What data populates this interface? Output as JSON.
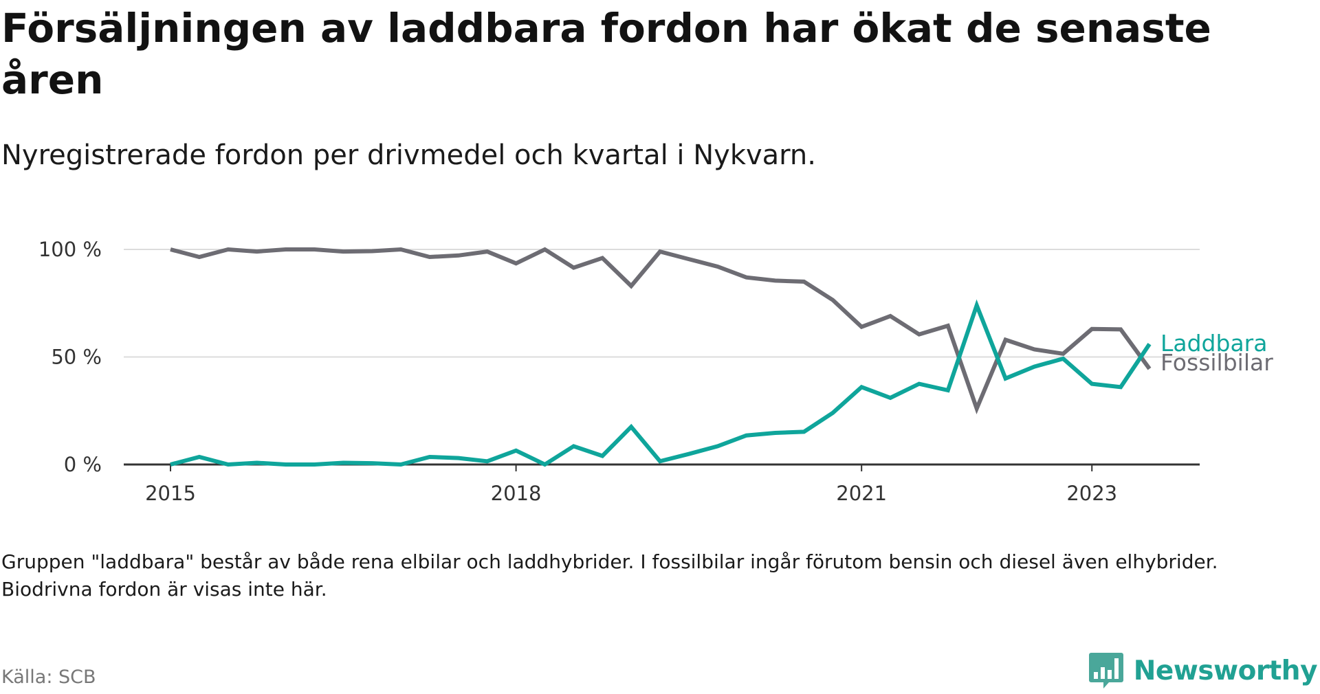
{
  "title": "Försäljningen av laddbara fordon har ökat de senaste åren",
  "subtitle": "Nyregistrerade fordon per drivmedel och kvartal i Nykvarn.",
  "note": "Gruppen \"laddbara\" består av både rena elbilar och laddhybrider. I fossilbilar ingår förutom bensin och diesel även elhybrider. Biodrivna fordon är visas inte här.",
  "source": "Källa: SCB",
  "brand": "Newsworthy",
  "colors": {
    "laddbara": "#0fa59b",
    "fossilbilar": "#6d6c73",
    "grid": "#dcdcdc",
    "axis": "#333333"
  },
  "chart_data": {
    "type": "line",
    "x": [
      "2015-Q1",
      "2015-Q2",
      "2015-Q3",
      "2015-Q4",
      "2016-Q1",
      "2016-Q2",
      "2016-Q3",
      "2016-Q4",
      "2017-Q1",
      "2017-Q2",
      "2017-Q3",
      "2017-Q4",
      "2018-Q1",
      "2018-Q2",
      "2018-Q3",
      "2018-Q4",
      "2019-Q1",
      "2019-Q2",
      "2019-Q3",
      "2019-Q4",
      "2020-Q1",
      "2020-Q2",
      "2020-Q3",
      "2020-Q4",
      "2021-Q1",
      "2021-Q2",
      "2021-Q3",
      "2021-Q4",
      "2022-Q1",
      "2022-Q2",
      "2022-Q3",
      "2022-Q4",
      "2023-Q1",
      "2023-Q2",
      "2023-Q3"
    ],
    "x_numeric": [
      2015.0,
      2015.25,
      2015.5,
      2015.75,
      2016.0,
      2016.25,
      2016.5,
      2016.75,
      2017.0,
      2017.25,
      2017.5,
      2017.75,
      2018.0,
      2018.25,
      2018.5,
      2018.75,
      2019.0,
      2019.25,
      2019.5,
      2019.75,
      2020.0,
      2020.25,
      2020.5,
      2020.75,
      2021.0,
      2021.25,
      2021.5,
      2021.75,
      2022.0,
      2022.25,
      2022.5,
      2022.75,
      2023.0,
      2023.25,
      2023.5
    ],
    "series": [
      {
        "name": "Laddbara",
        "color_key": "laddbara",
        "values": [
          0,
          3.5,
          0,
          0.8,
          0,
          0,
          0.8,
          0.6,
          0,
          3.5,
          3,
          1.5,
          6.5,
          0,
          8.5,
          4,
          17.5,
          1.5,
          4.9,
          8.5,
          13.5,
          14.7,
          15.2,
          24,
          36,
          31,
          37.5,
          34.5,
          74,
          40,
          45.5,
          49.2,
          37.5,
          36,
          56
        ]
      },
      {
        "name": "Fossilbilar",
        "color_key": "fossilbilar",
        "values": [
          100,
          96.5,
          100,
          99,
          100,
          100,
          99,
          99.2,
          100,
          96.5,
          97.2,
          99,
          93.5,
          100,
          91.5,
          96,
          83,
          99,
          95.5,
          92,
          87,
          85.5,
          85,
          76.5,
          64,
          69,
          60.5,
          64.5,
          26,
          58,
          53.5,
          51.5,
          63,
          62.8,
          44.5
        ]
      }
    ],
    "x_ticks": [
      "2015",
      "2018",
      "2021",
      "2023"
    ],
    "y_ticks": [
      "0 %",
      "50 %",
      "100 %"
    ],
    "y_tick_values": [
      0,
      50,
      100
    ],
    "x_tick_values": [
      2015,
      2018,
      2021,
      2023
    ],
    "ylim": [
      0,
      100
    ],
    "xlim": [
      2015,
      2023.5
    ],
    "xlabel": "",
    "ylabel": "",
    "legend": "end-of-line labels"
  }
}
